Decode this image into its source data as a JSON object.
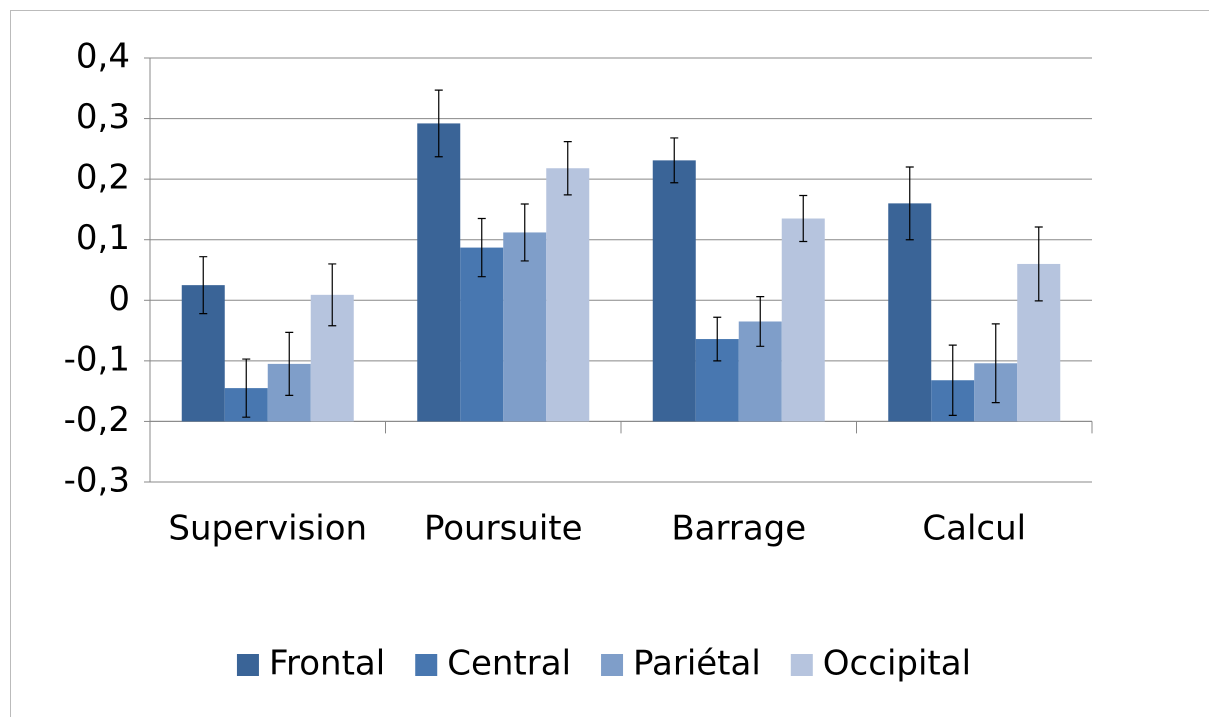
{
  "chart_data": {
    "type": "bar",
    "categories": [
      "Supervision",
      "Poursuite",
      "Barrage",
      "Calcul"
    ],
    "series": [
      {
        "name": "Frontal",
        "color": "#3a6497",
        "values": [
          0.025,
          0.292,
          0.231,
          0.16
        ],
        "errors": [
          0.047,
          0.055,
          0.037,
          0.06
        ]
      },
      {
        "name": "Central",
        "color": "#4877b0",
        "values": [
          -0.145,
          0.087,
          -0.064,
          -0.132
        ],
        "errors": [
          0.048,
          0.048,
          0.036,
          0.058
        ]
      },
      {
        "name": "Pariétal",
        "color": "#7f9ec9",
        "values": [
          -0.105,
          0.112,
          -0.035,
          -0.104
        ],
        "errors": [
          0.052,
          0.047,
          0.041,
          0.065
        ]
      },
      {
        "name": "Occipital",
        "color": "#b6c4de",
        "values": [
          0.009,
          0.218,
          0.135,
          0.06
        ],
        "errors": [
          0.051,
          0.044,
          0.038,
          0.061
        ]
      }
    ],
    "ylim": [
      -0.3,
      0.4
    ],
    "yticks": [
      {
        "value": -0.3,
        "label": "-0,3"
      },
      {
        "value": -0.2,
        "label": "-0,2"
      },
      {
        "value": -0.1,
        "label": "-0,1"
      },
      0,
      {
        "value": 0.1,
        "label": "0,1"
      },
      {
        "value": 0.2,
        "label": "0,2"
      },
      {
        "value": 0.3,
        "label": "0,3"
      },
      {
        "value": 0.4,
        "label": "0,4"
      }
    ],
    "axis_crossing": -0.2,
    "grid": true,
    "legend": "bottom"
  }
}
